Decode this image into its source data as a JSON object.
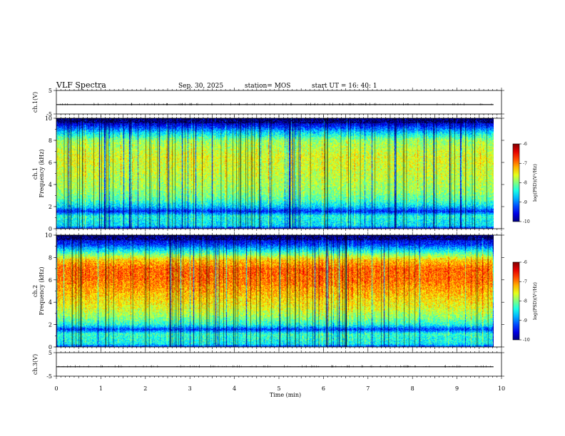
{
  "header": {
    "title": "VLF Spectra",
    "date": "Sep. 30, 2025",
    "station": "station= MOS",
    "start": "start  UT =    16: 40: 1"
  },
  "chart_data": [
    {
      "type": "line",
      "name": "ch1-waveform",
      "ylabel": "ch.1(V)",
      "ylim": [
        -5,
        5
      ],
      "yticks": [
        "5",
        "-5"
      ],
      "baseline": -1.0,
      "x": [
        0,
        9.82
      ],
      "y": [
        -1.0,
        -1.0
      ]
    },
    {
      "type": "heatmap",
      "name": "ch1-spectrogram",
      "ylabel_line1": "ch.1",
      "ylabel_line2": "Frequency (kHz)",
      "ylim": [
        0,
        10
      ],
      "yticks": [
        "0",
        "2",
        "4",
        "6",
        "8",
        "10"
      ],
      "xlim": [
        0,
        10
      ],
      "data_end_min": 9.82,
      "profile_f": [
        0,
        0.3,
        0.8,
        1.2,
        1.6,
        2.0,
        2.6,
        3.5,
        5.0,
        6.5,
        8.0,
        8.8,
        9.4,
        10
      ],
      "profile_v": [
        -9.6,
        -8.6,
        -8.5,
        -8.4,
        -9.4,
        -8.7,
        -8.2,
        -7.9,
        -7.7,
        -7.6,
        -7.9,
        -8.7,
        -9.5,
        -9.9
      ],
      "colorbar": {
        "label": "log(PSD)(V²/Hz)",
        "range": [
          -10,
          -6
        ],
        "ticks": [
          "-6",
          "-7",
          "-8",
          "-9",
          "-10"
        ]
      }
    },
    {
      "type": "heatmap",
      "name": "ch2-spectrogram",
      "ylabel_line1": "ch.2",
      "ylabel_line2": "Frequency (kHz)",
      "ylim": [
        0,
        10
      ],
      "yticks": [
        "0",
        "2",
        "4",
        "6",
        "8",
        "10"
      ],
      "xlim": [
        0,
        10
      ],
      "data_end_min": 9.82,
      "profile_f": [
        0,
        0.3,
        0.8,
        1.2,
        1.6,
        2.0,
        2.6,
        3.5,
        5.0,
        6.0,
        7.0,
        7.8,
        8.5,
        9.2,
        10
      ],
      "profile_v": [
        -9.5,
        -8.5,
        -8.4,
        -8.3,
        -9.3,
        -8.4,
        -8.0,
        -7.6,
        -7.2,
        -6.95,
        -6.9,
        -7.3,
        -8.3,
        -9.3,
        -9.9
      ],
      "colorbar": {
        "label": "log(PSD)(V²/Hz)",
        "range": [
          -10,
          -6
        ],
        "ticks": [
          "-6",
          "-7",
          "-8",
          "-9",
          "-10"
        ]
      }
    },
    {
      "type": "line",
      "name": "ch3-waveform",
      "ylabel": "ch.3(V)",
      "ylim": [
        -5,
        5
      ],
      "yticks": [
        "5",
        "-5"
      ],
      "baseline": -1.0,
      "x": [
        0,
        9.82
      ],
      "y": [
        -1.0,
        -1.0
      ]
    }
  ],
  "xaxis": {
    "label": "Time (min)",
    "ticks": [
      "0",
      "1",
      "2",
      "3",
      "4",
      "5",
      "6",
      "7",
      "8",
      "9",
      "10"
    ],
    "range": [
      0,
      10
    ]
  }
}
